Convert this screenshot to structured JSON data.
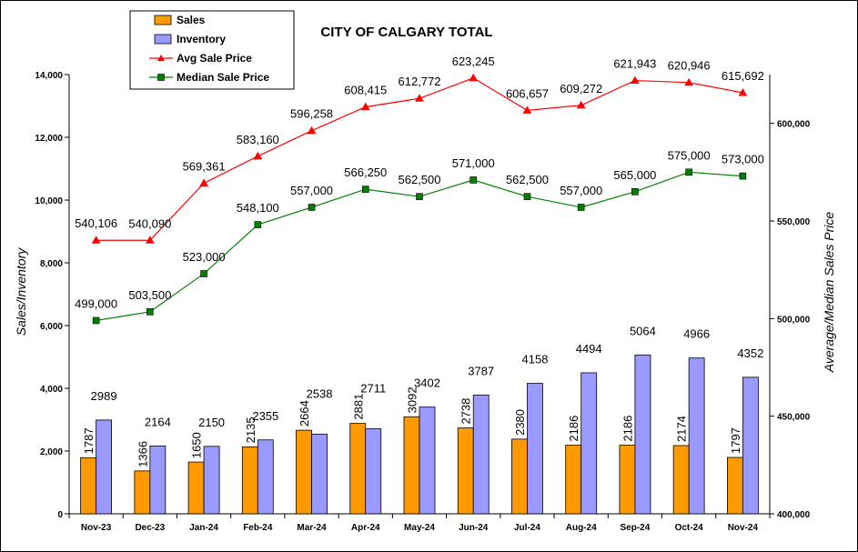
{
  "chart_data": {
    "type": "bar",
    "title": "CITY OF CALGARY TOTAL",
    "categories": [
      "Nov-23",
      "Dec-23",
      "Jan-24",
      "Feb-24",
      "Mar-24",
      "Apr-24",
      "May-24",
      "Jun-24",
      "Jul-24",
      "Aug-24",
      "Sep-24",
      "Oct-24",
      "Nov-24"
    ],
    "ylabel": "Sales/Inventory",
    "y2label": "Average/Median Sales Price",
    "ylim": [
      0,
      14000
    ],
    "y2lim": [
      400000,
      625000
    ],
    "yticks": [
      "0",
      "2,000",
      "4,000",
      "6,000",
      "8,000",
      "10,000",
      "12,000",
      "14,000"
    ],
    "y2ticks": [
      "400,000",
      "450,000",
      "500,000",
      "550,000",
      "600,000"
    ],
    "y2tick_values": [
      400000,
      450000,
      500000,
      550000,
      600000
    ],
    "grid": false,
    "legend_position": "top-left",
    "series": [
      {
        "name": "Sales",
        "type": "bar",
        "axis": "left",
        "color": "#FF9900",
        "values": [
          1787,
          1366,
          1650,
          2135,
          2664,
          2881,
          3092,
          2738,
          2380,
          2186,
          2186,
          2174,
          1797
        ],
        "labels": [
          "1787",
          "1366",
          "1650",
          "2135",
          "2664",
          "2881",
          "3092",
          "2738",
          "2380",
          "2186",
          "2186",
          "2174",
          "1797"
        ]
      },
      {
        "name": "Inventory",
        "type": "bar",
        "axis": "left",
        "color": "#9999FF",
        "values": [
          2989,
          2164,
          2150,
          2355,
          2538,
          2711,
          3402,
          3787,
          4158,
          4494,
          5064,
          4966,
          4352
        ],
        "labels": [
          "2989",
          "2164",
          "2150",
          "2355",
          "2538",
          "2711",
          "3402",
          "3787",
          "4158",
          "4494",
          "5064",
          "4966",
          "4352"
        ]
      },
      {
        "name": "Avg Sale Price",
        "type": "line",
        "axis": "right",
        "color": "#FF0000",
        "marker": "triangle",
        "values": [
          540106,
          540090,
          569361,
          583160,
          596258,
          608415,
          612772,
          623245,
          606657,
          609272,
          621943,
          620946,
          615692
        ],
        "labels": [
          "540,106",
          "540,090",
          "569,361",
          "583,160",
          "596,258",
          "608,415",
          "612,772",
          "623,245",
          "606,657",
          "609,272",
          "621,943",
          "620,946",
          "615,692"
        ]
      },
      {
        "name": "Median Sale Price",
        "type": "line",
        "axis": "right",
        "color": "#008000",
        "marker": "square",
        "values": [
          499000,
          503500,
          523000,
          548100,
          557000,
          566250,
          562500,
          571000,
          562500,
          557000,
          565000,
          575000,
          573000
        ],
        "labels": [
          "499,000",
          "503,500",
          "523,000",
          "548,100",
          "557,000",
          "566,250",
          "562,500",
          "571,000",
          "562,500",
          "557,000",
          "565,000",
          "575,000",
          "573,000"
        ]
      }
    ]
  }
}
